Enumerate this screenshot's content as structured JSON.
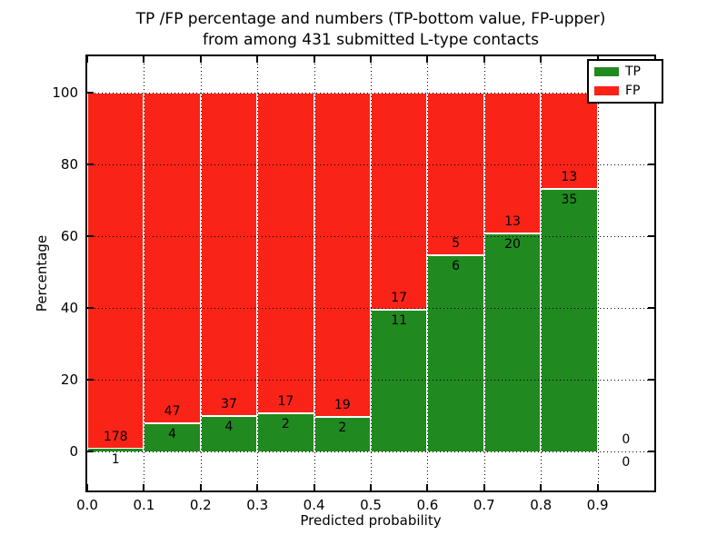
{
  "title": {
    "line1": "TP /FP percentage and numbers (TP-bottom value, FP-upper)",
    "line2": "from among 431 submitted L-type contacts"
  },
  "chart_data": {
    "type": "bar",
    "stacked": true,
    "normalized_to_percent": true,
    "total_contacts": 431,
    "categories": [
      "0.0-0.1",
      "0.1-0.2",
      "0.2-0.3",
      "0.3-0.4",
      "0.4-0.5",
      "0.5-0.6",
      "0.6-0.7",
      "0.7-0.8",
      "0.8-0.9",
      "0.9-1.0"
    ],
    "bin_starts": [
      0.0,
      0.1,
      0.2,
      0.3,
      0.4,
      0.5,
      0.6,
      0.7,
      0.8,
      0.9
    ],
    "bin_width": 0.1,
    "series": [
      {
        "name": "TP",
        "color": "#208920",
        "counts": [
          1,
          4,
          4,
          2,
          2,
          11,
          6,
          20,
          35,
          0
        ]
      },
      {
        "name": "FP",
        "color": "#fa2318",
        "counts": [
          178,
          47,
          37,
          17,
          19,
          17,
          5,
          13,
          13,
          0
        ]
      }
    ],
    "tp_percent": [
      0.6,
      7.8,
      9.8,
      10.5,
      9.5,
      39.3,
      54.5,
      60.6,
      72.9,
      0.0
    ],
    "xlabel": "Predicted probability",
    "ylabel": "Percentage",
    "xlim": [
      0.0,
      1.0
    ],
    "ylim": [
      -11,
      110
    ],
    "xticks": [
      "0.0",
      "0.1",
      "0.2",
      "0.3",
      "0.4",
      "0.5",
      "0.6",
      "0.7",
      "0.8",
      "0.9"
    ],
    "yticks": [
      "0",
      "20",
      "40",
      "60",
      "80",
      "100"
    ],
    "grid": "dotted",
    "bar_edge_color": "#ffffff",
    "legend": {
      "position": "upper right",
      "entries": [
        {
          "label": "TP",
          "color": "#208920"
        },
        {
          "label": "FP",
          "color": "#fa2318"
        }
      ]
    }
  }
}
